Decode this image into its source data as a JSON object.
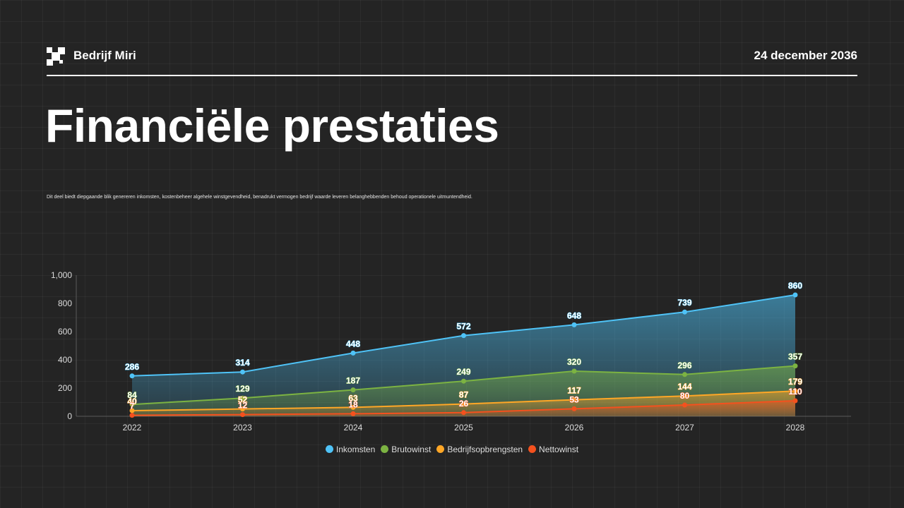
{
  "header": {
    "brand": "Bedrijf Miri",
    "date": "24 december 2036",
    "logo_icon": "checker-logo-icon"
  },
  "page": {
    "title": "Financiële prestaties",
    "description": "Dit deel biedt diepgaande blik genereren inkomsten, kostenbeheer algehele winstgevendheid, benadrukt vermogen bedrijf waarde leveren belanghebbenden behoud operationele uitmuntendheid."
  },
  "chart_data": {
    "type": "area",
    "title": "",
    "xlabel": "",
    "ylabel": "",
    "x": [
      "2022",
      "2023",
      "2024",
      "2025",
      "2026",
      "2027",
      "2028"
    ],
    "ylim": [
      0,
      1000
    ],
    "yticks": [
      0,
      200,
      400,
      600,
      800,
      1000
    ],
    "ytick_labels": [
      "0",
      "200",
      "400",
      "600",
      "800",
      "1,000"
    ],
    "grid": false,
    "legend_position": "bottom",
    "series": [
      {
        "name": "Inkomsten",
        "values": [
          286,
          314,
          448,
          572,
          648,
          739,
          860
        ],
        "color": "#4fc3f7"
      },
      {
        "name": "Brutowinst",
        "values": [
          84,
          129,
          187,
          249,
          320,
          296,
          357
        ],
        "color": "#7cb342"
      },
      {
        "name": "Bedrijfsopbrengsten",
        "values": [
          40,
          52,
          63,
          87,
          117,
          144,
          179
        ],
        "color": "#ffa726"
      },
      {
        "name": "Nettowinst",
        "values": [
          7,
          12,
          18,
          26,
          53,
          80,
          110
        ],
        "color": "#f4511e"
      }
    ]
  }
}
